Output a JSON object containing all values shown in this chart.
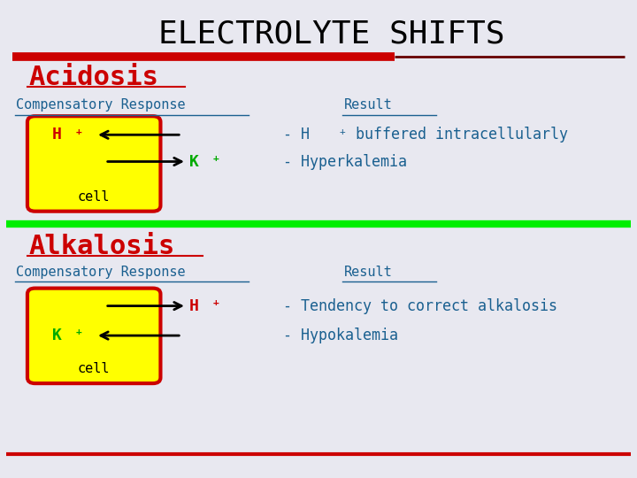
{
  "title": "ELECTROLYTE SHIFTS",
  "title_fontsize": 26,
  "title_color": "#000000",
  "bg_color": "#e8e8f0",
  "section1_label": "Acidosis",
  "section2_label": "Alkalosis",
  "section_color": "#cc0000",
  "comp_response_label": "Compensatory Response",
  "result_label": "Result",
  "header_color": "#1a6090",
  "cell_fill": "#ffff00",
  "cell_border": "#cc0000",
  "h_plus_color": "#cc0000",
  "k_plus_color": "#00aa00",
  "arrow_color": "#000000",
  "acidosis_result2": "- Hyperkalemia",
  "alkalosis_result1": "- Tendency to correct alkalosis",
  "alkalosis_result2": "- Hypokalemia",
  "divider1_color": "#cc0000",
  "divider2_color": "#00ee00",
  "divider3_color": "#cc0000",
  "cell_label": "cell"
}
